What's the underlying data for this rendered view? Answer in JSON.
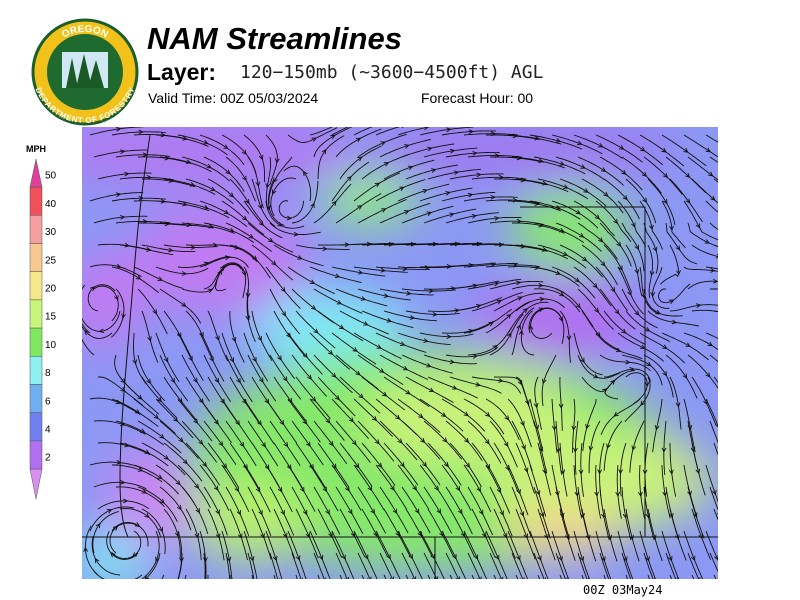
{
  "logo": {
    "top": "OREGON",
    "bottom": "DEPARTMENT OF FORESTRY"
  },
  "header": {
    "title": "NAM Streamlines",
    "layer_label": "Layer:",
    "layer": "120−150mb (~3600−4500ft) AGL",
    "valid_time": "Valid Time: 00Z 05/03/2024",
    "forecast_hour": "Forecast Hour: 00"
  },
  "legend": {
    "unit": "MPH",
    "labels": [
      50,
      40,
      30,
      25,
      20,
      15,
      10,
      8,
      6,
      4,
      2
    ],
    "colors": [
      "#e0409a",
      "#f0505a",
      "#f4a0a0",
      "#f7c890",
      "#f4e88a",
      "#c8f57a",
      "#80e860",
      "#90f0f0",
      "#70b0f0",
      "#7080f0",
      "#b070f0",
      "#d890f0"
    ]
  },
  "footer": "00Z 03May24"
}
